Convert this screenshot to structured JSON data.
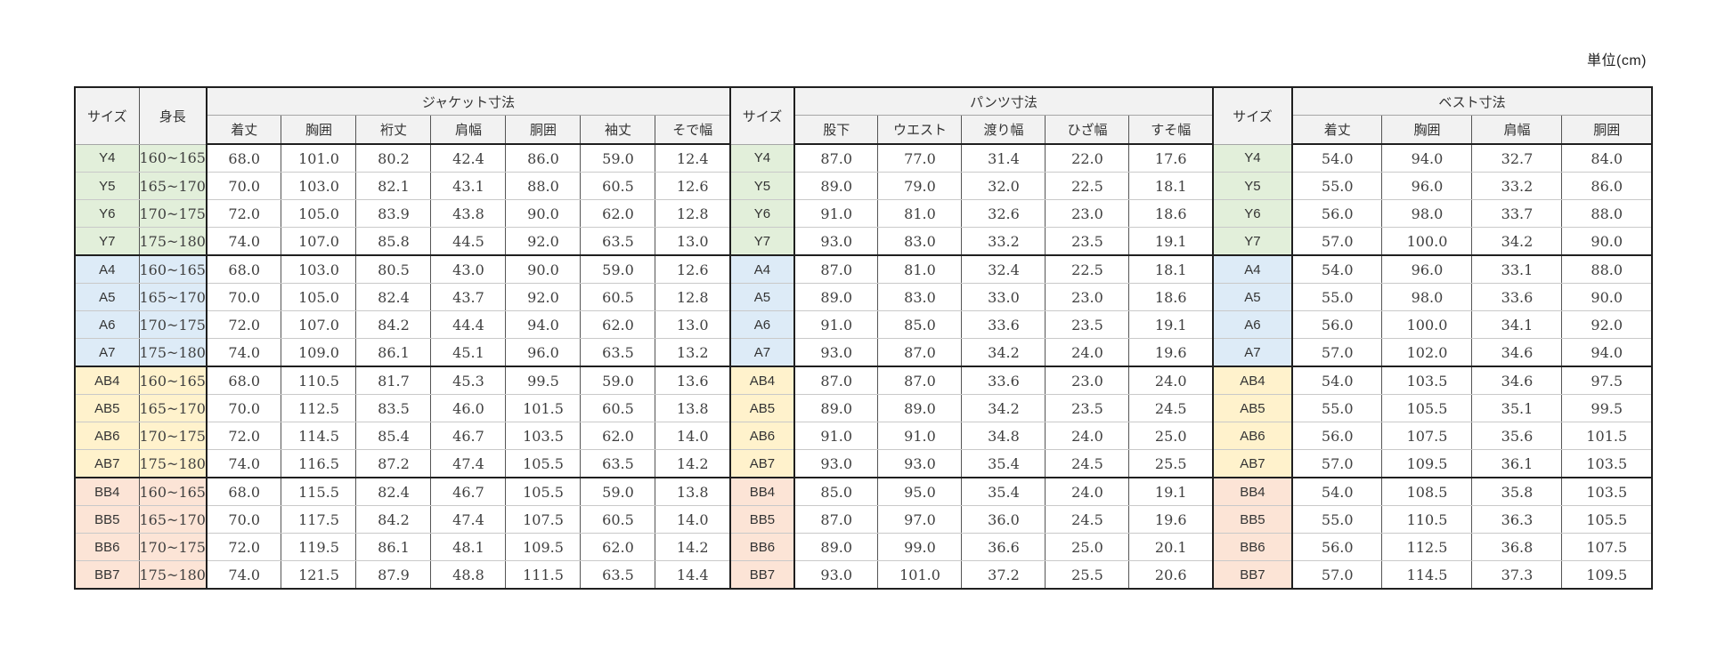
{
  "page": {
    "unit_label": "単位(cm)"
  },
  "table": {
    "headers": {
      "size": "サイズ",
      "height": "身長",
      "jacket_group": "ジャケット寸法",
      "jacket_cols": [
        "着丈",
        "胸囲",
        "裄丈",
        "肩幅",
        "胴囲",
        "袖丈",
        "そで幅"
      ],
      "pants_group": "パンツ寸法",
      "pants_cols": [
        "股下",
        "ウエスト",
        "渡り幅",
        "ひざ幅",
        "すそ幅"
      ],
      "vest_group": "ベスト寸法",
      "vest_cols": [
        "着丈",
        "胸囲",
        "肩幅",
        "胴囲"
      ]
    },
    "header_bg": "#f2f2f2",
    "groups": [
      {
        "name": "Y",
        "color": "#e2efda",
        "rows": [
          {
            "size": "Y4",
            "height": "160~165",
            "jacket": [
              "68.0",
              "101.0",
              "80.2",
              "42.4",
              "86.0",
              "59.0",
              "12.4"
            ],
            "pants": [
              "87.0",
              "77.0",
              "31.4",
              "22.0",
              "17.6"
            ],
            "vest": [
              "54.0",
              "94.0",
              "32.7",
              "84.0"
            ]
          },
          {
            "size": "Y5",
            "height": "165~170",
            "jacket": [
              "70.0",
              "103.0",
              "82.1",
              "43.1",
              "88.0",
              "60.5",
              "12.6"
            ],
            "pants": [
              "89.0",
              "79.0",
              "32.0",
              "22.5",
              "18.1"
            ],
            "vest": [
              "55.0",
              "96.0",
              "33.2",
              "86.0"
            ]
          },
          {
            "size": "Y6",
            "height": "170~175",
            "jacket": [
              "72.0",
              "105.0",
              "83.9",
              "43.8",
              "90.0",
              "62.0",
              "12.8"
            ],
            "pants": [
              "91.0",
              "81.0",
              "32.6",
              "23.0",
              "18.6"
            ],
            "vest": [
              "56.0",
              "98.0",
              "33.7",
              "88.0"
            ]
          },
          {
            "size": "Y7",
            "height": "175~180",
            "jacket": [
              "74.0",
              "107.0",
              "85.8",
              "44.5",
              "92.0",
              "63.5",
              "13.0"
            ],
            "pants": [
              "93.0",
              "83.0",
              "33.2",
              "23.5",
              "19.1"
            ],
            "vest": [
              "57.0",
              "100.0",
              "34.2",
              "90.0"
            ]
          }
        ]
      },
      {
        "name": "A",
        "color": "#ddebf7",
        "rows": [
          {
            "size": "A4",
            "height": "160~165",
            "jacket": [
              "68.0",
              "103.0",
              "80.5",
              "43.0",
              "90.0",
              "59.0",
              "12.6"
            ],
            "pants": [
              "87.0",
              "81.0",
              "32.4",
              "22.5",
              "18.1"
            ],
            "vest": [
              "54.0",
              "96.0",
              "33.1",
              "88.0"
            ]
          },
          {
            "size": "A5",
            "height": "165~170",
            "jacket": [
              "70.0",
              "105.0",
              "82.4",
              "43.7",
              "92.0",
              "60.5",
              "12.8"
            ],
            "pants": [
              "89.0",
              "83.0",
              "33.0",
              "23.0",
              "18.6"
            ],
            "vest": [
              "55.0",
              "98.0",
              "33.6",
              "90.0"
            ]
          },
          {
            "size": "A6",
            "height": "170~175",
            "jacket": [
              "72.0",
              "107.0",
              "84.2",
              "44.4",
              "94.0",
              "62.0",
              "13.0"
            ],
            "pants": [
              "91.0",
              "85.0",
              "33.6",
              "23.5",
              "19.1"
            ],
            "vest": [
              "56.0",
              "100.0",
              "34.1",
              "92.0"
            ]
          },
          {
            "size": "A7",
            "height": "175~180",
            "jacket": [
              "74.0",
              "109.0",
              "86.1",
              "45.1",
              "96.0",
              "63.5",
              "13.2"
            ],
            "pants": [
              "93.0",
              "87.0",
              "34.2",
              "24.0",
              "19.6"
            ],
            "vest": [
              "57.0",
              "102.0",
              "34.6",
              "94.0"
            ]
          }
        ]
      },
      {
        "name": "AB",
        "color": "#fff2cc",
        "rows": [
          {
            "size": "AB4",
            "height": "160~165",
            "jacket": [
              "68.0",
              "110.5",
              "81.7",
              "45.3",
              "99.5",
              "59.0",
              "13.6"
            ],
            "pants": [
              "87.0",
              "87.0",
              "33.6",
              "23.0",
              "24.0"
            ],
            "vest": [
              "54.0",
              "103.5",
              "34.6",
              "97.5"
            ]
          },
          {
            "size": "AB5",
            "height": "165~170",
            "jacket": [
              "70.0",
              "112.5",
              "83.5",
              "46.0",
              "101.5",
              "60.5",
              "13.8"
            ],
            "pants": [
              "89.0",
              "89.0",
              "34.2",
              "23.5",
              "24.5"
            ],
            "vest": [
              "55.0",
              "105.5",
              "35.1",
              "99.5"
            ]
          },
          {
            "size": "AB6",
            "height": "170~175",
            "jacket": [
              "72.0",
              "114.5",
              "85.4",
              "46.7",
              "103.5",
              "62.0",
              "14.0"
            ],
            "pants": [
              "91.0",
              "91.0",
              "34.8",
              "24.0",
              "25.0"
            ],
            "vest": [
              "56.0",
              "107.5",
              "35.6",
              "101.5"
            ]
          },
          {
            "size": "AB7",
            "height": "175~180",
            "jacket": [
              "74.0",
              "116.5",
              "87.2",
              "47.4",
              "105.5",
              "63.5",
              "14.2"
            ],
            "pants": [
              "93.0",
              "93.0",
              "35.4",
              "24.5",
              "25.5"
            ],
            "vest": [
              "57.0",
              "109.5",
              "36.1",
              "103.5"
            ]
          }
        ]
      },
      {
        "name": "BB",
        "color": "#fce4d6",
        "rows": [
          {
            "size": "BB4",
            "height": "160~165",
            "jacket": [
              "68.0",
              "115.5",
              "82.4",
              "46.7",
              "105.5",
              "59.0",
              "13.8"
            ],
            "pants": [
              "85.0",
              "95.0",
              "35.4",
              "24.0",
              "19.1"
            ],
            "vest": [
              "54.0",
              "108.5",
              "35.8",
              "103.5"
            ]
          },
          {
            "size": "BB5",
            "height": "165~170",
            "jacket": [
              "70.0",
              "117.5",
              "84.2",
              "47.4",
              "107.5",
              "60.5",
              "14.0"
            ],
            "pants": [
              "87.0",
              "97.0",
              "36.0",
              "24.5",
              "19.6"
            ],
            "vest": [
              "55.0",
              "110.5",
              "36.3",
              "105.5"
            ]
          },
          {
            "size": "BB6",
            "height": "170~175",
            "jacket": [
              "72.0",
              "119.5",
              "86.1",
              "48.1",
              "109.5",
              "62.0",
              "14.2"
            ],
            "pants": [
              "89.0",
              "99.0",
              "36.6",
              "25.0",
              "20.1"
            ],
            "vest": [
              "56.0",
              "112.5",
              "36.8",
              "107.5"
            ]
          },
          {
            "size": "BB7",
            "height": "175~180",
            "jacket": [
              "74.0",
              "121.5",
              "87.9",
              "48.8",
              "111.5",
              "63.5",
              "14.4"
            ],
            "pants": [
              "93.0",
              "101.0",
              "37.2",
              "25.5",
              "20.6"
            ],
            "vest": [
              "57.0",
              "114.5",
              "37.3",
              "109.5"
            ]
          }
        ]
      }
    ]
  }
}
